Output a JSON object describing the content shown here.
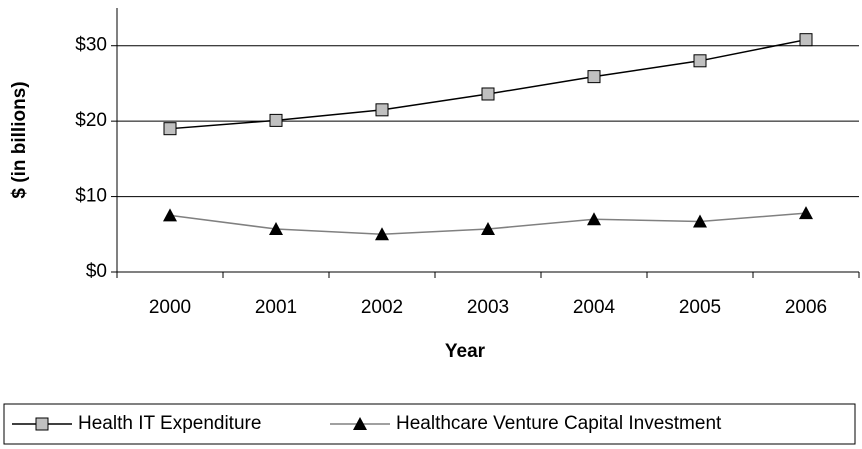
{
  "chart_data": {
    "type": "line",
    "x_label": "Year",
    "y_label": "$ (in billions)",
    "categories": [
      "2000",
      "2001",
      "2002",
      "2003",
      "2004",
      "2005",
      "2006"
    ],
    "series": [
      {
        "name": "Health IT Expenditure",
        "color": "#000000",
        "marker_color": "#c0c0c0",
        "marker": "square",
        "values": [
          19.0,
          20.1,
          21.5,
          23.6,
          25.9,
          28.0,
          30.8
        ]
      },
      {
        "name": "Healthcare Venture Capital Investment",
        "color": "#808080",
        "marker_color": "#000000",
        "marker": "triangle",
        "values": [
          7.5,
          5.7,
          5.0,
          5.7,
          7.0,
          6.7,
          7.8
        ]
      }
    ],
    "ylim": [
      0,
      35
    ],
    "yticks": [
      {
        "value": 0,
        "label": "$0"
      },
      {
        "value": 10,
        "label": "$10"
      },
      {
        "value": 20,
        "label": "$20"
      },
      {
        "value": 30,
        "label": "$30"
      }
    ],
    "grid": true,
    "legend": "bottom"
  }
}
